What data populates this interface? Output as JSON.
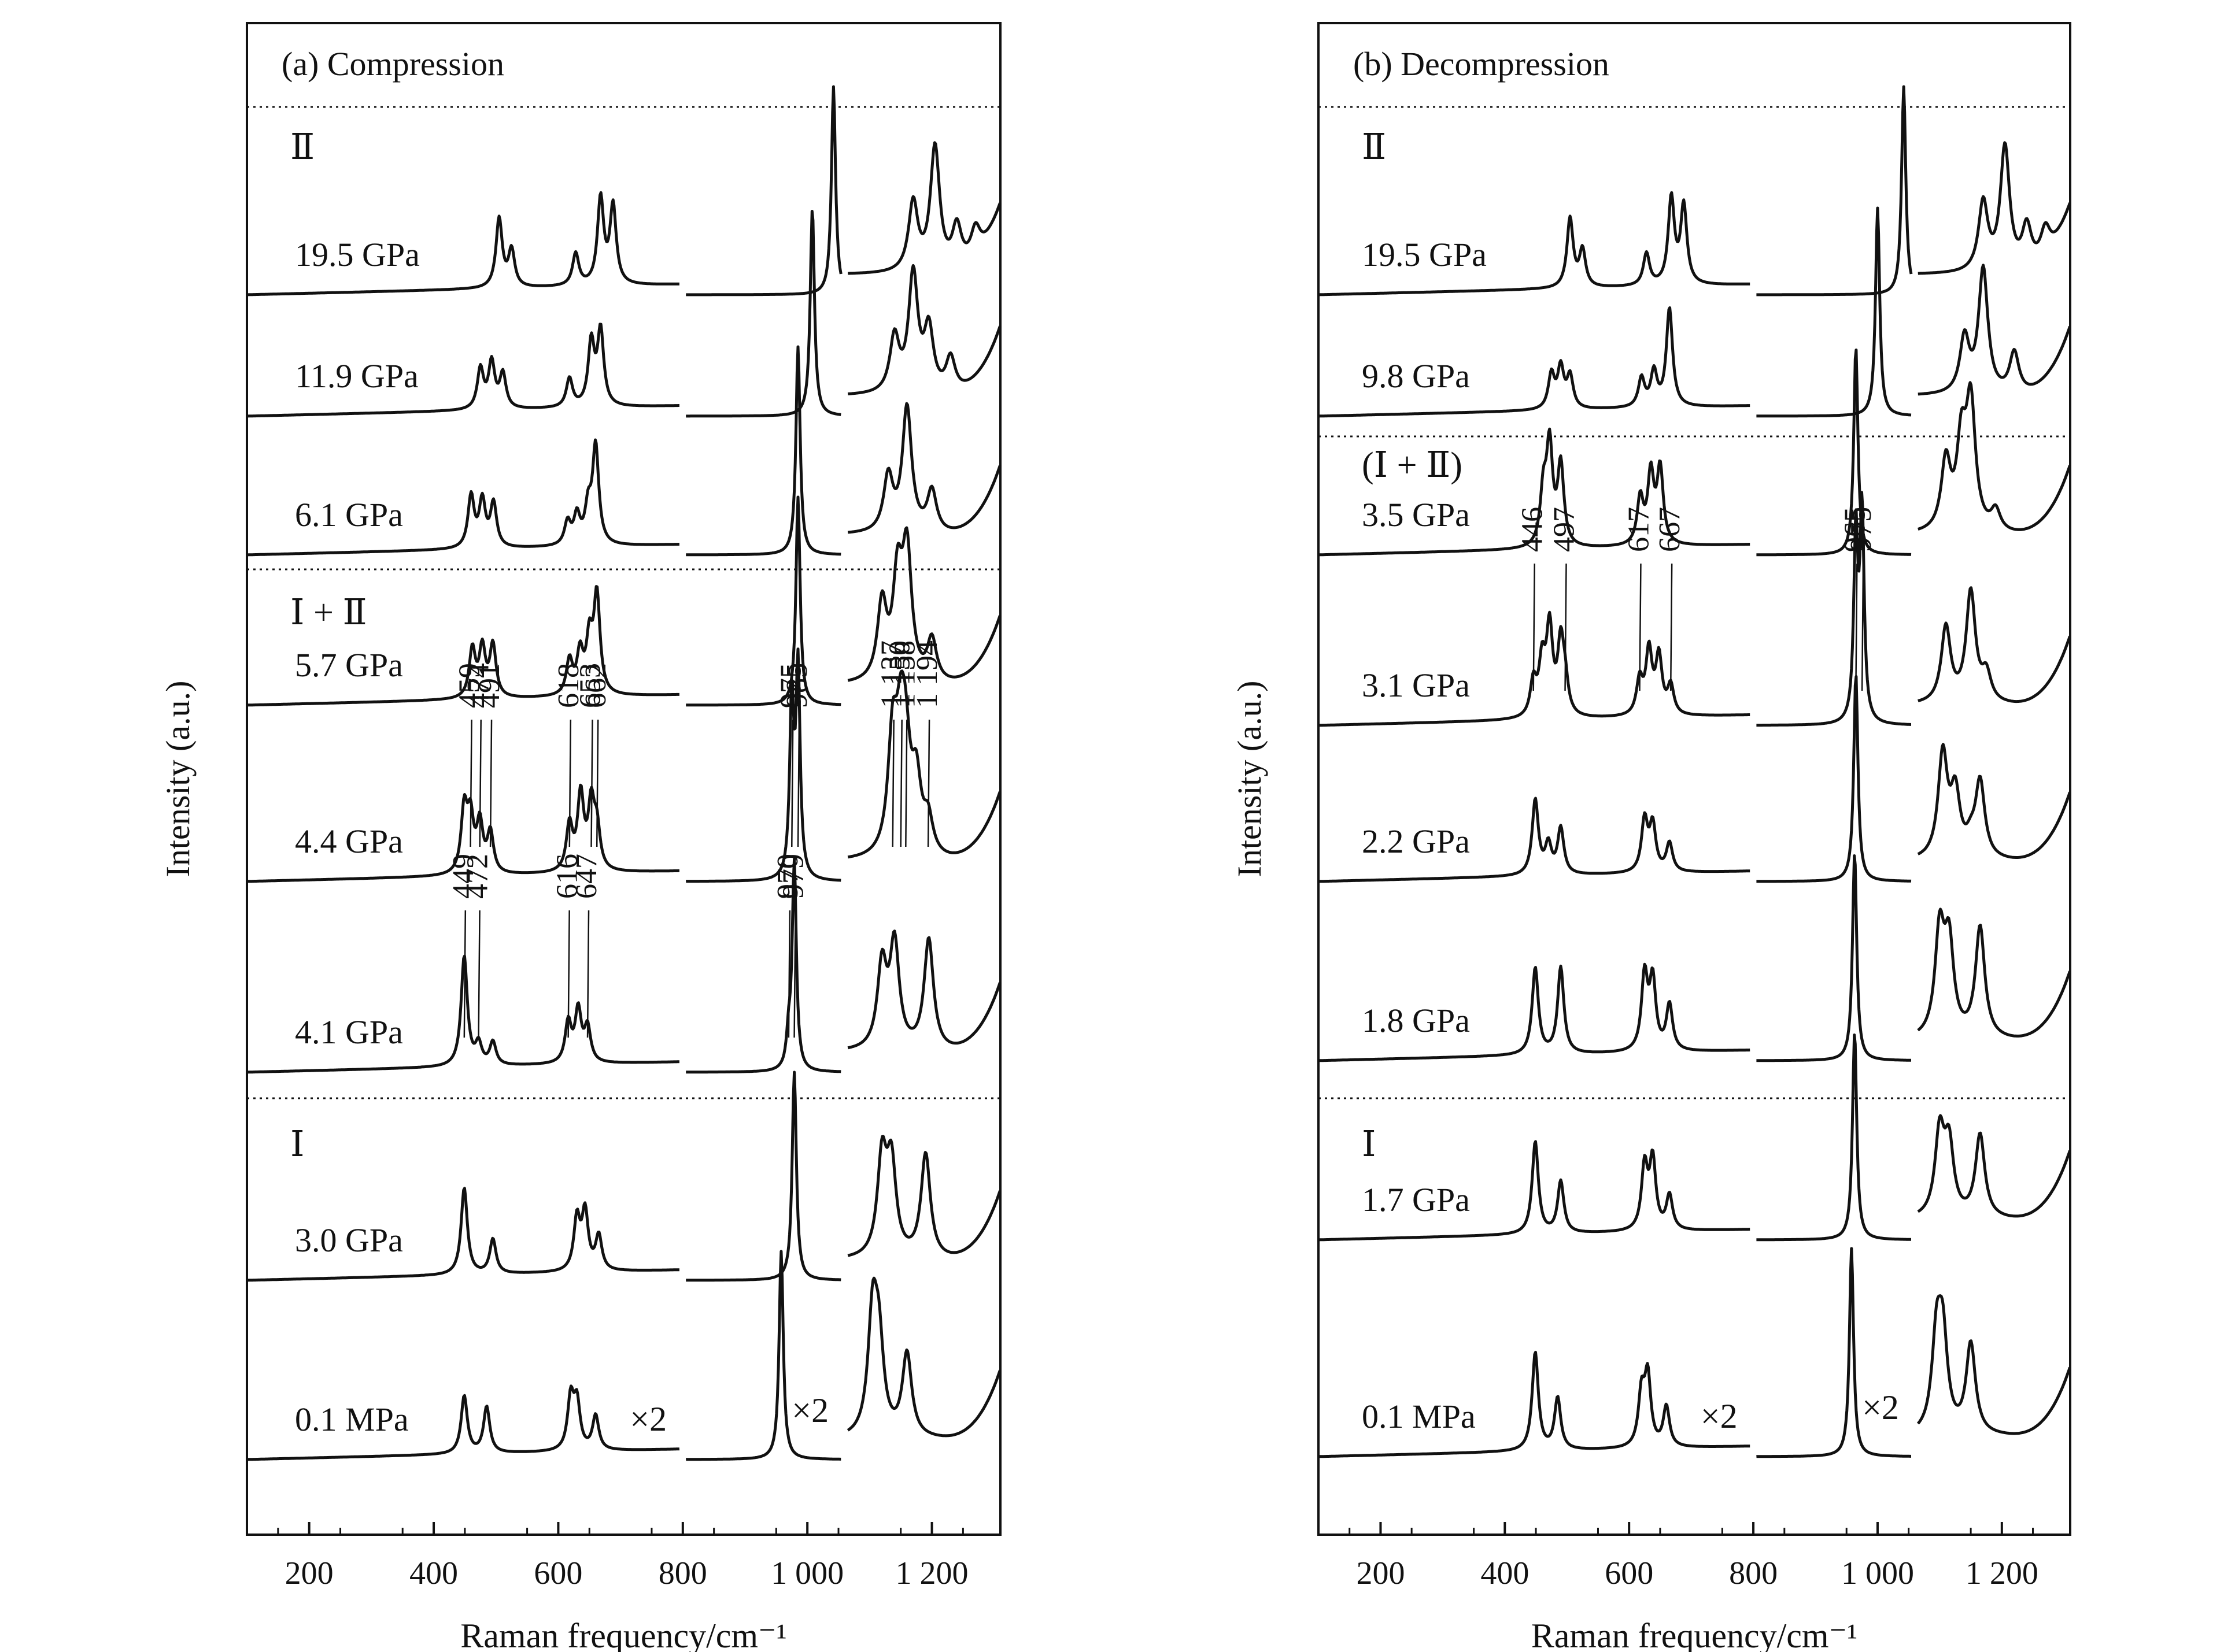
{
  "chart_data": [
    {
      "type": "line",
      "title": "(a) Compression",
      "xlabel": "Raman frequency/cm⁻¹",
      "ylabel": "Intensity (a.u.)",
      "xlim": [
        100,
        1310
      ],
      "xticks": [
        200,
        400,
        600,
        800,
        1000,
        1200
      ],
      "xtick_labels": [
        "200",
        "400",
        "600",
        "800",
        "1 000",
        "1 200"
      ],
      "phase_labels": [
        "Ⅱ",
        "Ⅰ + Ⅱ",
        "Ⅰ"
      ],
      "multiplier_label": "×2",
      "spectra": [
        {
          "pressure": "19.5 GPa",
          "low_peaks": [
            [
              505,
              0.6
            ],
            [
              525,
              0.32
            ],
            [
              628,
              0.28
            ],
            [
              668,
              0.75
            ],
            [
              688,
              0.68
            ]
          ],
          "mid_peaks": [
            [
              1042,
              1.0
            ]
          ],
          "high_peaks": [
            [
              1170,
              0.5
            ],
            [
              1205,
              0.9
            ],
            [
              1240,
              0.3
            ],
            [
              1270,
              0.2
            ]
          ]
        },
        {
          "pressure": "11.9 GPa",
          "low_peaks": [
            [
              475,
              0.35
            ],
            [
              493,
              0.4
            ],
            [
              511,
              0.3
            ],
            [
              618,
              0.25
            ],
            [
              653,
              0.55
            ],
            [
              668,
              0.65
            ]
          ],
          "mid_peaks": [
            [
              1008,
              1.0
            ]
          ],
          "high_peaks": [
            [
              1140,
              0.4
            ],
            [
              1170,
              0.85
            ],
            [
              1195,
              0.45
            ],
            [
              1230,
              0.25
            ]
          ]
        },
        {
          "pressure": "6.1 GPa",
          "low_peaks": [
            [
              460,
              0.45
            ],
            [
              478,
              0.4
            ],
            [
              496,
              0.38
            ],
            [
              615,
              0.2
            ],
            [
              630,
              0.25
            ],
            [
              648,
              0.3
            ],
            [
              660,
              0.85
            ]
          ],
          "mid_peaks": [
            [
              985,
              1.0
            ]
          ],
          "high_peaks": [
            [
              1130,
              0.4
            ],
            [
              1160,
              0.9
            ],
            [
              1200,
              0.3
            ]
          ]
        },
        {
          "pressure": "5.7 GPa",
          "low_peaks": [
            [
              462,
              0.42
            ],
            [
              478,
              0.42
            ],
            [
              495,
              0.45
            ],
            [
              618,
              0.3
            ],
            [
              635,
              0.35
            ],
            [
              650,
              0.45
            ],
            [
              662,
              0.85
            ]
          ],
          "mid_peaks": [
            [
              985,
              1.0
            ]
          ],
          "high_peaks": [
            [
              1120,
              0.55
            ],
            [
              1145,
              0.7
            ],
            [
              1160,
              0.9
            ],
            [
              1200,
              0.3
            ]
          ]
        },
        {
          "pressure": "4.4 GPa",
          "low_peaks": [
            [
              449,
              0.55
            ],
            [
              459,
              0.45
            ],
            [
              474,
              0.42
            ],
            [
              491,
              0.35
            ],
            [
              618,
              0.4
            ],
            [
              636,
              0.65
            ],
            [
              653,
              0.55
            ],
            [
              662,
              0.35
            ]
          ],
          "mid_peaks": [
            [
              975,
              0.85
            ],
            [
              985,
              1.0
            ]
          ],
          "high_peaks": [
            [
              1137,
              0.8
            ],
            [
              1150,
              0.7
            ],
            [
              1158,
              0.6
            ],
            [
              1175,
              0.5
            ],
            [
              1194,
              0.25
            ]
          ]
        },
        {
          "pressure": "4.1 GPa",
          "low_peaks": [
            [
              449,
              0.95
            ],
            [
              472,
              0.18
            ],
            [
              495,
              0.2
            ],
            [
              616,
              0.35
            ],
            [
              632,
              0.45
            ],
            [
              647,
              0.3
            ]
          ],
          "mid_peaks": [
            [
              970,
              0.15
            ],
            [
              979,
              1.0
            ]
          ],
          "high_peaks": [
            [
              1120,
              0.6
            ],
            [
              1140,
              0.75
            ],
            [
              1195,
              0.8
            ]
          ]
        },
        {
          "pressure": "3.0 GPa",
          "low_peaks": [
            [
              449,
              0.75
            ],
            [
              495,
              0.3
            ],
            [
              630,
              0.45
            ],
            [
              643,
              0.5
            ],
            [
              665,
              0.3
            ]
          ],
          "mid_peaks": [
            [
              979,
              1.0
            ]
          ],
          "high_peaks": [
            [
              1120,
              0.7
            ],
            [
              1135,
              0.65
            ],
            [
              1190,
              0.75
            ]
          ]
        },
        {
          "pressure": "0.1 MPa",
          "low_peaks": [
            [
              449,
              0.5
            ],
            [
              485,
              0.4
            ],
            [
              620,
              0.45
            ],
            [
              630,
              0.4
            ],
            [
              660,
              0.3
            ]
          ],
          "mid_peaks": [
            [
              958,
              1.0
            ]
          ],
          "high_peaks": [
            [
              1105,
              0.85
            ],
            [
              1115,
              0.6
            ],
            [
              1160,
              0.6
            ]
          ]
        }
      ],
      "annotations": [
        {
          "text": "459",
          "x": 459,
          "row": "4.4 GPa"
        },
        {
          "text": "474",
          "x": 474,
          "row": "4.4 GPa"
        },
        {
          "text": "491",
          "x": 491,
          "row": "4.4 GPa"
        },
        {
          "text": "618",
          "x": 618,
          "row": "4.4 GPa"
        },
        {
          "text": "653",
          "x": 653,
          "row": "4.4 GPa"
        },
        {
          "text": "662",
          "x": 662,
          "row": "4.4 GPa"
        },
        {
          "text": "975",
          "x": 975,
          "row": "4.4 GPa"
        },
        {
          "text": "985",
          "x": 985,
          "row": "4.4 GPa"
        },
        {
          "text": "1 137",
          "x": 1137,
          "row": "4.4 GPa"
        },
        {
          "text": "1 150",
          "x": 1150,
          "row": "4.4 GPa"
        },
        {
          "text": "1 158",
          "x": 1158,
          "row": "4.4 GPa"
        },
        {
          "text": "1 194",
          "x": 1194,
          "row": "4.4 GPa"
        },
        {
          "text": "449",
          "x": 449,
          "row": "4.1 GPa"
        },
        {
          "text": "472",
          "x": 472,
          "row": "4.1 GPa"
        },
        {
          "text": "616",
          "x": 616,
          "row": "4.1 GPa"
        },
        {
          "text": "647",
          "x": 647,
          "row": "4.1 GPa"
        },
        {
          "text": "970",
          "x": 970,
          "row": "4.1 GPa"
        },
        {
          "text": "979",
          "x": 979,
          "row": "4.1 GPa"
        }
      ]
    },
    {
      "type": "line",
      "title": "(b) Decompression",
      "xlabel": "Raman frequency/cm⁻¹",
      "ylabel": "Intensity (a.u.)",
      "xlim": [
        100,
        1310
      ],
      "xticks": [
        200,
        400,
        600,
        800,
        1000,
        1200
      ],
      "xtick_labels": [
        "200",
        "400",
        "600",
        "800",
        "1 000",
        "1 200"
      ],
      "phase_labels": [
        "Ⅱ",
        "(Ⅰ + Ⅱ)",
        "Ⅰ"
      ],
      "multiplier_label": "×2",
      "spectra": [
        {
          "pressure": "19.5 GPa",
          "low_peaks": [
            [
              505,
              0.6
            ],
            [
              525,
              0.32
            ],
            [
              628,
              0.28
            ],
            [
              668,
              0.75
            ],
            [
              688,
              0.68
            ]
          ],
          "mid_peaks": [
            [
              1042,
              1.0
            ]
          ],
          "high_peaks": [
            [
              1170,
              0.5
            ],
            [
              1205,
              0.9
            ],
            [
              1240,
              0.3
            ],
            [
              1270,
              0.2
            ]
          ]
        },
        {
          "pressure": "9.8 GPa",
          "low_peaks": [
            [
              475,
              0.3
            ],
            [
              490,
              0.35
            ],
            [
              505,
              0.28
            ],
            [
              620,
              0.25
            ],
            [
              640,
              0.3
            ],
            [
              665,
              0.85
            ]
          ],
          "mid_peaks": [
            [
              1000,
              1.0
            ]
          ],
          "high_peaks": [
            [
              1140,
              0.4
            ],
            [
              1170,
              0.9
            ],
            [
              1220,
              0.3
            ]
          ]
        },
        {
          "pressure": "3.5 GPa",
          "low_peaks": [
            [
              462,
              0.45
            ],
            [
              472,
              0.85
            ],
            [
              490,
              0.7
            ],
            [
              618,
              0.4
            ],
            [
              635,
              0.6
            ],
            [
              650,
              0.65
            ]
          ],
          "mid_peaks": [
            [
              965,
              1.0
            ]
          ],
          "high_peaks": [
            [
              1110,
              0.5
            ],
            [
              1135,
              0.6
            ],
            [
              1150,
              0.9
            ],
            [
              1190,
              0.15
            ]
          ]
        },
        {
          "pressure": "3.1 GPa",
          "low_peaks": [
            [
              446,
              0.3
            ],
            [
              460,
              0.45
            ],
            [
              472,
              0.75
            ],
            [
              490,
              0.6
            ],
            [
              497,
              0.25
            ],
            [
              617,
              0.3
            ],
            [
              632,
              0.55
            ],
            [
              648,
              0.5
            ],
            [
              667,
              0.25
            ]
          ],
          "mid_peaks": [
            [
              965,
              0.9
            ],
            [
              975,
              1.0
            ]
          ],
          "high_peaks": [
            [
              1110,
              0.55
            ],
            [
              1150,
              0.8
            ],
            [
              1175,
              0.2
            ]
          ]
        },
        {
          "pressure": "2.2 GPa",
          "low_peaks": [
            [
              449,
              0.65
            ],
            [
              470,
              0.25
            ],
            [
              490,
              0.4
            ],
            [
              625,
              0.45
            ],
            [
              638,
              0.4
            ],
            [
              665,
              0.25
            ]
          ],
          "mid_peaks": [
            [
              965,
              1.0
            ]
          ],
          "high_peaks": [
            [
              1105,
              0.75
            ],
            [
              1125,
              0.45
            ],
            [
              1150,
              0.1
            ],
            [
              1165,
              0.55
            ]
          ]
        },
        {
          "pressure": "1.8 GPa",
          "low_peaks": [
            [
              449,
              0.75
            ],
            [
              490,
              0.75
            ],
            [
              625,
              0.65
            ],
            [
              638,
              0.6
            ],
            [
              665,
              0.4
            ]
          ],
          "mid_peaks": [
            [
              963,
              1.0
            ]
          ],
          "high_peaks": [
            [
              1100,
              0.75
            ],
            [
              1115,
              0.65
            ],
            [
              1165,
              0.8
            ]
          ]
        },
        {
          "pressure": "1.7 GPa",
          "low_peaks": [
            [
              449,
              0.8
            ],
            [
              490,
              0.45
            ],
            [
              625,
              0.55
            ],
            [
              638,
              0.6
            ],
            [
              665,
              0.3
            ]
          ],
          "mid_peaks": [
            [
              963,
              1.0
            ]
          ],
          "high_peaks": [
            [
              1100,
              0.6
            ],
            [
              1115,
              0.5
            ],
            [
              1165,
              0.6
            ]
          ]
        },
        {
          "pressure": "0.1 MPa",
          "low_peaks": [
            [
              449,
              0.85
            ],
            [
              485,
              0.45
            ],
            [
              620,
              0.45
            ],
            [
              630,
              0.6
            ],
            [
              660,
              0.35
            ]
          ],
          "mid_peaks": [
            [
              958,
              1.0
            ]
          ],
          "high_peaks": [
            [
              1095,
              0.65
            ],
            [
              1105,
              0.65
            ],
            [
              1150,
              0.65
            ]
          ]
        }
      ],
      "annotations": [
        {
          "text": "446",
          "x": 446,
          "row": "3.1 GPa"
        },
        {
          "text": "497",
          "x": 497,
          "row": "3.1 GPa"
        },
        {
          "text": "617",
          "x": 617,
          "row": "3.1 GPa"
        },
        {
          "text": "667",
          "x": 667,
          "row": "3.1 GPa"
        },
        {
          "text": "965",
          "x": 965,
          "row": "3.1 GPa"
        },
        {
          "text": "975",
          "x": 975,
          "row": "3.1 GPa"
        }
      ]
    }
  ]
}
